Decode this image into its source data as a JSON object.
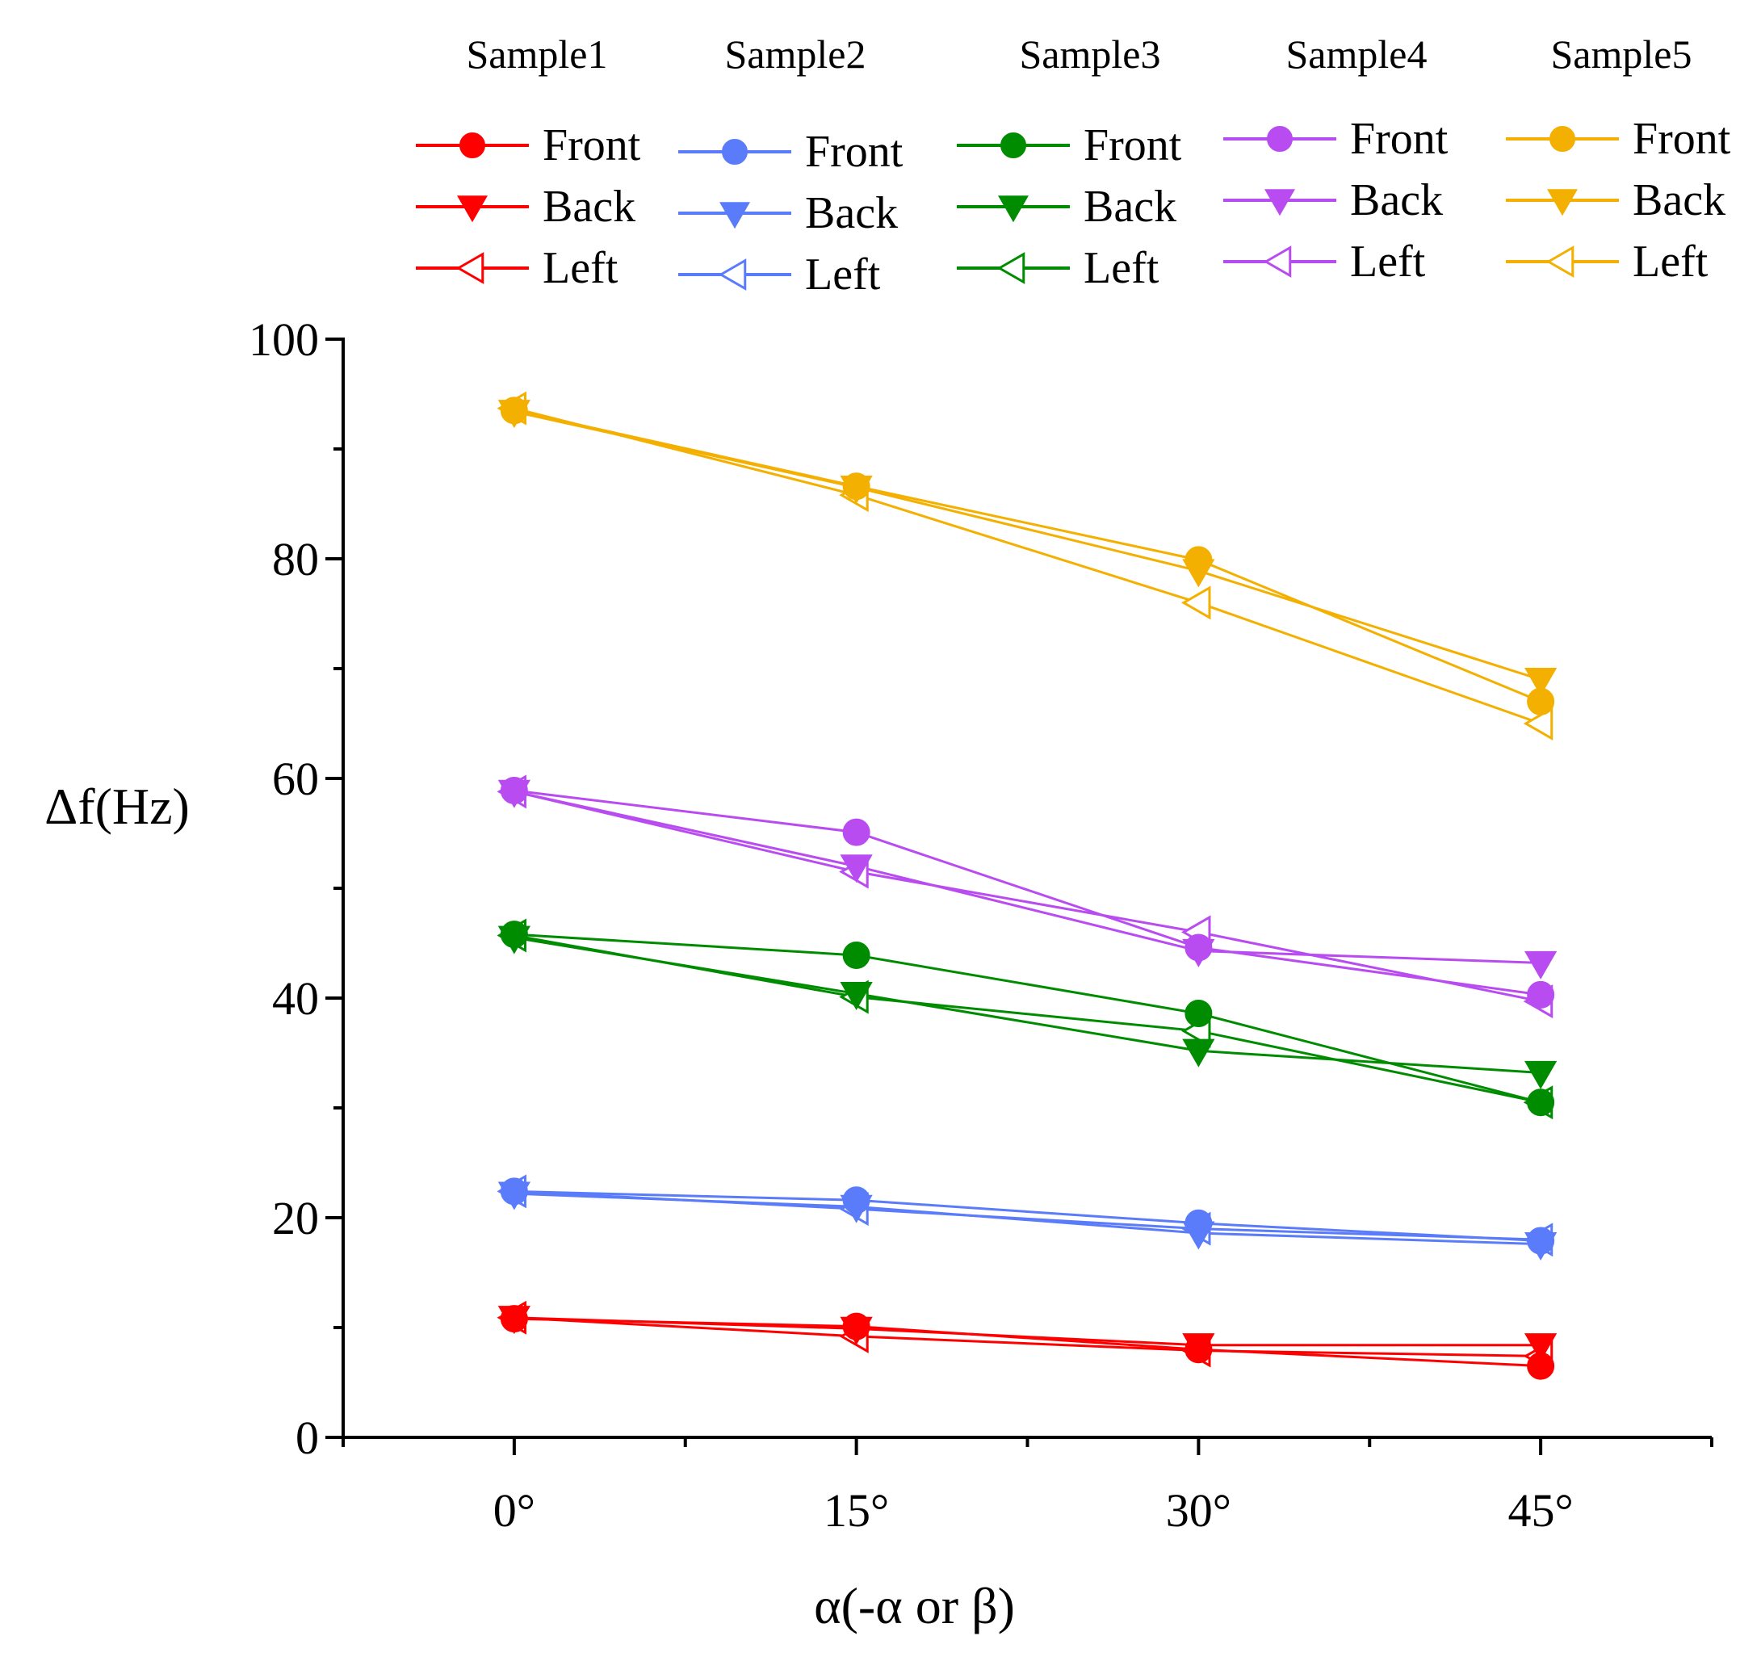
{
  "chart_data": {
    "type": "line",
    "title": "",
    "xlabel": "α(-α or β)",
    "ylabel": "Δf(Hz)",
    "categories": [
      "0°",
      "15°",
      "30°",
      "45°"
    ],
    "x": [
      0,
      15,
      30,
      45
    ],
    "xlim": [
      -7.5,
      52.5
    ],
    "ylim": [
      0,
      100
    ],
    "yticks": [
      0,
      20,
      40,
      60,
      80,
      100
    ],
    "grid": false,
    "legend_position": "top",
    "samples": [
      {
        "name": "Sample1",
        "color": "#ff0000",
        "series": [
          {
            "name": "Front",
            "marker": "circle",
            "values": [
              10.8,
              10.1,
              8.0,
              6.5
            ]
          },
          {
            "name": "Back",
            "marker": "triangle-down",
            "values": [
              10.9,
              9.9,
              8.4,
              8.4
            ]
          },
          {
            "name": "Left",
            "marker": "triangle-left-open",
            "values": [
              10.9,
              9.2,
              7.9,
              7.4
            ]
          }
        ]
      },
      {
        "name": "Sample2",
        "color": "#5b7cfa",
        "series": [
          {
            "name": "Front",
            "marker": "circle",
            "values": [
              22.4,
              21.6,
              19.5,
              17.9
            ]
          },
          {
            "name": "Back",
            "marker": "triangle-down",
            "values": [
              22.2,
              21.0,
              18.6,
              17.6
            ]
          },
          {
            "name": "Left",
            "marker": "triangle-left-open",
            "values": [
              22.4,
              20.8,
              19.0,
              18.0
            ]
          }
        ]
      },
      {
        "name": "Sample3",
        "color": "#008c00",
        "series": [
          {
            "name": "Front",
            "marker": "circle",
            "values": [
              45.8,
              43.9,
              38.6,
              30.5
            ]
          },
          {
            "name": "Back",
            "marker": "triangle-down",
            "values": [
              45.5,
              40.4,
              35.2,
              33.2
            ]
          },
          {
            "name": "Left",
            "marker": "triangle-left-open",
            "values": [
              45.7,
              40.1,
              37.0,
              30.5
            ]
          }
        ]
      },
      {
        "name": "Sample4",
        "color": "#b94cf0",
        "series": [
          {
            "name": "Front",
            "marker": "circle",
            "values": [
              58.9,
              55.1,
              44.6,
              40.3
            ]
          },
          {
            "name": "Back",
            "marker": "triangle-down",
            "values": [
              58.8,
              52.0,
              44.3,
              43.2
            ]
          },
          {
            "name": "Left",
            "marker": "triangle-left-open",
            "values": [
              58.8,
              51.5,
              46.0,
              39.7
            ]
          }
        ]
      },
      {
        "name": "Sample5",
        "color": "#f4b000",
        "series": [
          {
            "name": "Front",
            "marker": "circle",
            "values": [
              93.5,
              86.6,
              79.9,
              67.0
            ]
          },
          {
            "name": "Back",
            "marker": "triangle-down",
            "values": [
              93.4,
              86.5,
              78.9,
              69.0
            ]
          },
          {
            "name": "Left",
            "marker": "triangle-left-open",
            "values": [
              93.7,
              85.8,
              76.0,
              65.0
            ]
          }
        ]
      }
    ]
  }
}
